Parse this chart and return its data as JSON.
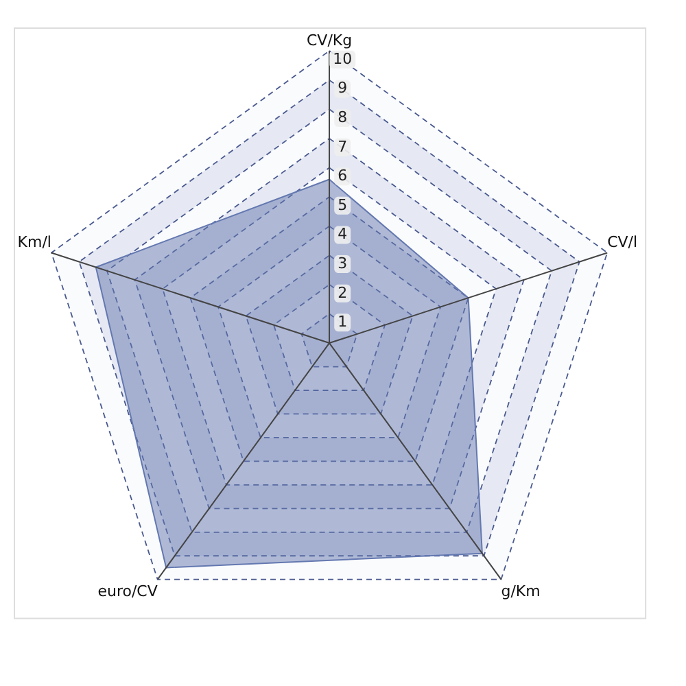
{
  "chart_data": {
    "type": "radar",
    "categories": [
      "CV/Kg",
      "CV/l",
      "g/Km",
      "euro/CV",
      "Km/l"
    ],
    "series": [
      {
        "color": "#6478b0",
        "values": [
          5.6,
          5.0,
          8.9,
          9.5,
          8.4
        ]
      }
    ],
    "ylim": [
      0,
      10
    ],
    "yticks": [
      1,
      2,
      3,
      4,
      5,
      6,
      7,
      8,
      9,
      10
    ],
    "grid": true
  }
}
